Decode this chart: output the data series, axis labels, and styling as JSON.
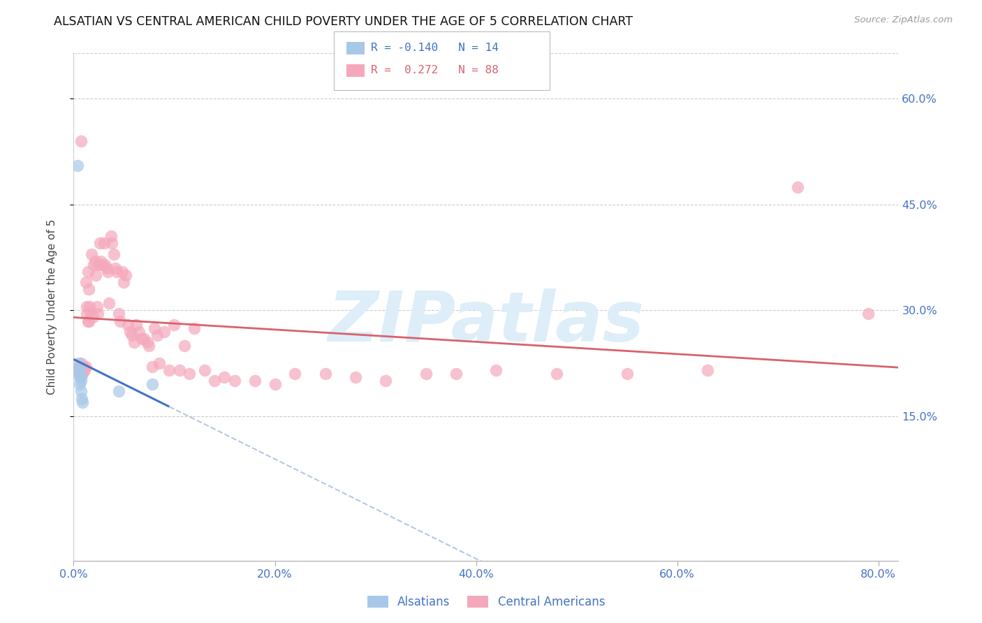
{
  "title": "ALSATIAN VS CENTRAL AMERICAN CHILD POVERTY UNDER THE AGE OF 5 CORRELATION CHART",
  "source": "Source: ZipAtlas.com",
  "ylabel": "Child Poverty Under the Age of 5",
  "xlabel_ticks": [
    "0.0%",
    "20.0%",
    "40.0%",
    "60.0%",
    "80.0%"
  ],
  "xlabel_vals": [
    0.0,
    0.2,
    0.4,
    0.6,
    0.8
  ],
  "ylabel_ticks": [
    "15.0%",
    "30.0%",
    "45.0%",
    "60.0%"
  ],
  "ylabel_vals": [
    0.15,
    0.3,
    0.45,
    0.6
  ],
  "xlim": [
    0.0,
    0.82
  ],
  "ylim": [
    -0.055,
    0.665
  ],
  "alsatian_color": "#a8c8e8",
  "central_color": "#f5a8bc",
  "line_alsatian_color": "#4472c4",
  "line_central_color": "#d9626e",
  "watermark_color": "#ddeef8",
  "background_color": "#ffffff",
  "alsatians_x": [
    0.004,
    0.004,
    0.005,
    0.005,
    0.006,
    0.006,
    0.006,
    0.007,
    0.007,
    0.007,
    0.008,
    0.009,
    0.045,
    0.078
  ],
  "alsatians_y": [
    0.505,
    0.215,
    0.225,
    0.215,
    0.215,
    0.205,
    0.195,
    0.205,
    0.2,
    0.185,
    0.175,
    0.17,
    0.185,
    0.195
  ],
  "central_x": [
    0.004,
    0.005,
    0.005,
    0.006,
    0.006,
    0.007,
    0.007,
    0.008,
    0.008,
    0.009,
    0.009,
    0.01,
    0.011,
    0.012,
    0.012,
    0.013,
    0.013,
    0.014,
    0.014,
    0.015,
    0.015,
    0.016,
    0.017,
    0.018,
    0.019,
    0.02,
    0.021,
    0.022,
    0.023,
    0.024,
    0.025,
    0.026,
    0.027,
    0.028,
    0.03,
    0.031,
    0.033,
    0.034,
    0.035,
    0.037,
    0.038,
    0.04,
    0.041,
    0.043,
    0.045,
    0.046,
    0.048,
    0.05,
    0.052,
    0.054,
    0.056,
    0.058,
    0.06,
    0.062,
    0.065,
    0.068,
    0.07,
    0.073,
    0.075,
    0.078,
    0.08,
    0.083,
    0.085,
    0.09,
    0.095,
    0.1,
    0.105,
    0.11,
    0.115,
    0.12,
    0.13,
    0.14,
    0.15,
    0.16,
    0.18,
    0.2,
    0.22,
    0.25,
    0.28,
    0.31,
    0.35,
    0.38,
    0.42,
    0.48,
    0.55,
    0.63,
    0.72,
    0.79
  ],
  "central_y": [
    0.215,
    0.22,
    0.21,
    0.22,
    0.215,
    0.225,
    0.54,
    0.22,
    0.215,
    0.215,
    0.21,
    0.22,
    0.215,
    0.34,
    0.22,
    0.305,
    0.295,
    0.355,
    0.285,
    0.33,
    0.285,
    0.305,
    0.295,
    0.38,
    0.29,
    0.365,
    0.37,
    0.35,
    0.305,
    0.295,
    0.365,
    0.395,
    0.37,
    0.365,
    0.395,
    0.365,
    0.36,
    0.355,
    0.31,
    0.405,
    0.395,
    0.38,
    0.36,
    0.355,
    0.295,
    0.285,
    0.355,
    0.34,
    0.35,
    0.28,
    0.27,
    0.265,
    0.255,
    0.28,
    0.27,
    0.26,
    0.26,
    0.255,
    0.25,
    0.22,
    0.275,
    0.265,
    0.225,
    0.27,
    0.215,
    0.28,
    0.215,
    0.25,
    0.21,
    0.275,
    0.215,
    0.2,
    0.205,
    0.2,
    0.2,
    0.195,
    0.21,
    0.21,
    0.205,
    0.2,
    0.21,
    0.21,
    0.215,
    0.21,
    0.21,
    0.215,
    0.475,
    0.295
  ]
}
